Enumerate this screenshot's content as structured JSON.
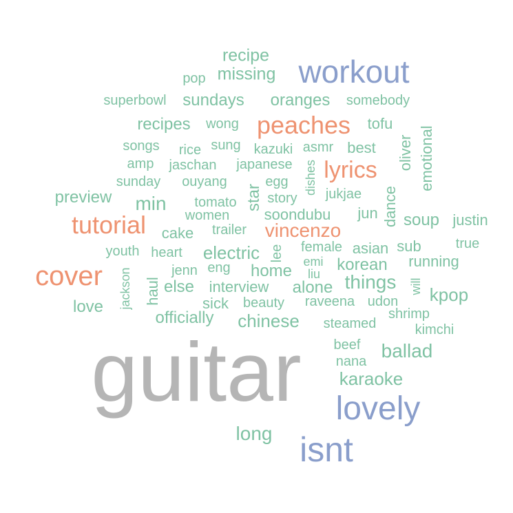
{
  "colors": {
    "gray": "#b5b5b5",
    "blue": "#8a9ecb",
    "orange": "#ee9270",
    "green": "#7fc2a3"
  },
  "words": [
    {
      "text": "guitar",
      "color": "gray"
    },
    {
      "text": "workout",
      "color": "blue"
    },
    {
      "text": "lovely",
      "color": "blue"
    },
    {
      "text": "isnt",
      "color": "blue"
    },
    {
      "text": "peaches",
      "color": "orange"
    },
    {
      "text": "lyrics",
      "color": "orange"
    },
    {
      "text": "tutorial",
      "color": "orange"
    },
    {
      "text": "vincenzo",
      "color": "orange"
    },
    {
      "text": "cover",
      "color": "orange"
    },
    {
      "text": "recipe",
      "color": "green"
    },
    {
      "text": "missing",
      "color": "green"
    },
    {
      "text": "pop",
      "color": "green"
    },
    {
      "text": "superbowl",
      "color": "green"
    },
    {
      "text": "sundays",
      "color": "green"
    },
    {
      "text": "oranges",
      "color": "green"
    },
    {
      "text": "somebody",
      "color": "green"
    },
    {
      "text": "recipes",
      "color": "green"
    },
    {
      "text": "wong",
      "color": "green"
    },
    {
      "text": "tofu",
      "color": "green"
    },
    {
      "text": "emotional",
      "color": "green"
    },
    {
      "text": "songs",
      "color": "green"
    },
    {
      "text": "rice",
      "color": "green"
    },
    {
      "text": "sung",
      "color": "green"
    },
    {
      "text": "kazuki",
      "color": "green"
    },
    {
      "text": "asmr",
      "color": "green"
    },
    {
      "text": "best",
      "color": "green"
    },
    {
      "text": "oliver",
      "color": "green"
    },
    {
      "text": "amp",
      "color": "green"
    },
    {
      "text": "jaschan",
      "color": "green"
    },
    {
      "text": "japanese",
      "color": "green"
    },
    {
      "text": "dishes",
      "color": "green"
    },
    {
      "text": "sunday",
      "color": "green"
    },
    {
      "text": "ouyang",
      "color": "green"
    },
    {
      "text": "egg",
      "color": "green"
    },
    {
      "text": "jukjae",
      "color": "green"
    },
    {
      "text": "preview",
      "color": "green"
    },
    {
      "text": "min",
      "color": "green"
    },
    {
      "text": "tomato",
      "color": "green"
    },
    {
      "text": "star",
      "color": "green"
    },
    {
      "text": "story",
      "color": "green"
    },
    {
      "text": "dance",
      "color": "green"
    },
    {
      "text": "women",
      "color": "green"
    },
    {
      "text": "soondubu",
      "color": "green"
    },
    {
      "text": "jun",
      "color": "green"
    },
    {
      "text": "soup",
      "color": "green"
    },
    {
      "text": "justin",
      "color": "green"
    },
    {
      "text": "cake",
      "color": "green"
    },
    {
      "text": "trailer",
      "color": "green"
    },
    {
      "text": "true",
      "color": "green"
    },
    {
      "text": "youth",
      "color": "green"
    },
    {
      "text": "heart",
      "color": "green"
    },
    {
      "text": "electric",
      "color": "green"
    },
    {
      "text": "lee",
      "color": "green"
    },
    {
      "text": "female",
      "color": "green"
    },
    {
      "text": "asian",
      "color": "green"
    },
    {
      "text": "sub",
      "color": "green"
    },
    {
      "text": "running",
      "color": "green"
    },
    {
      "text": "jackson",
      "color": "green"
    },
    {
      "text": "jenn",
      "color": "green"
    },
    {
      "text": "eng",
      "color": "green"
    },
    {
      "text": "home",
      "color": "green"
    },
    {
      "text": "emi",
      "color": "green"
    },
    {
      "text": "liu",
      "color": "green"
    },
    {
      "text": "korean",
      "color": "green"
    },
    {
      "text": "haul",
      "color": "green"
    },
    {
      "text": "else",
      "color": "green"
    },
    {
      "text": "interview",
      "color": "green"
    },
    {
      "text": "alone",
      "color": "green"
    },
    {
      "text": "things",
      "color": "green"
    },
    {
      "text": "will",
      "color": "green"
    },
    {
      "text": "kpop",
      "color": "green"
    },
    {
      "text": "love",
      "color": "green"
    },
    {
      "text": "sick",
      "color": "green"
    },
    {
      "text": "beauty",
      "color": "green"
    },
    {
      "text": "raveena",
      "color": "green"
    },
    {
      "text": "udon",
      "color": "green"
    },
    {
      "text": "officially",
      "color": "green"
    },
    {
      "text": "chinese",
      "color": "green"
    },
    {
      "text": "steamed",
      "color": "green"
    },
    {
      "text": "shrimp",
      "color": "green"
    },
    {
      "text": "kimchi",
      "color": "green"
    },
    {
      "text": "beef",
      "color": "green"
    },
    {
      "text": "ballad",
      "color": "green"
    },
    {
      "text": "nana",
      "color": "green"
    },
    {
      "text": "karaoke",
      "color": "green"
    },
    {
      "text": "long",
      "color": "green"
    }
  ]
}
